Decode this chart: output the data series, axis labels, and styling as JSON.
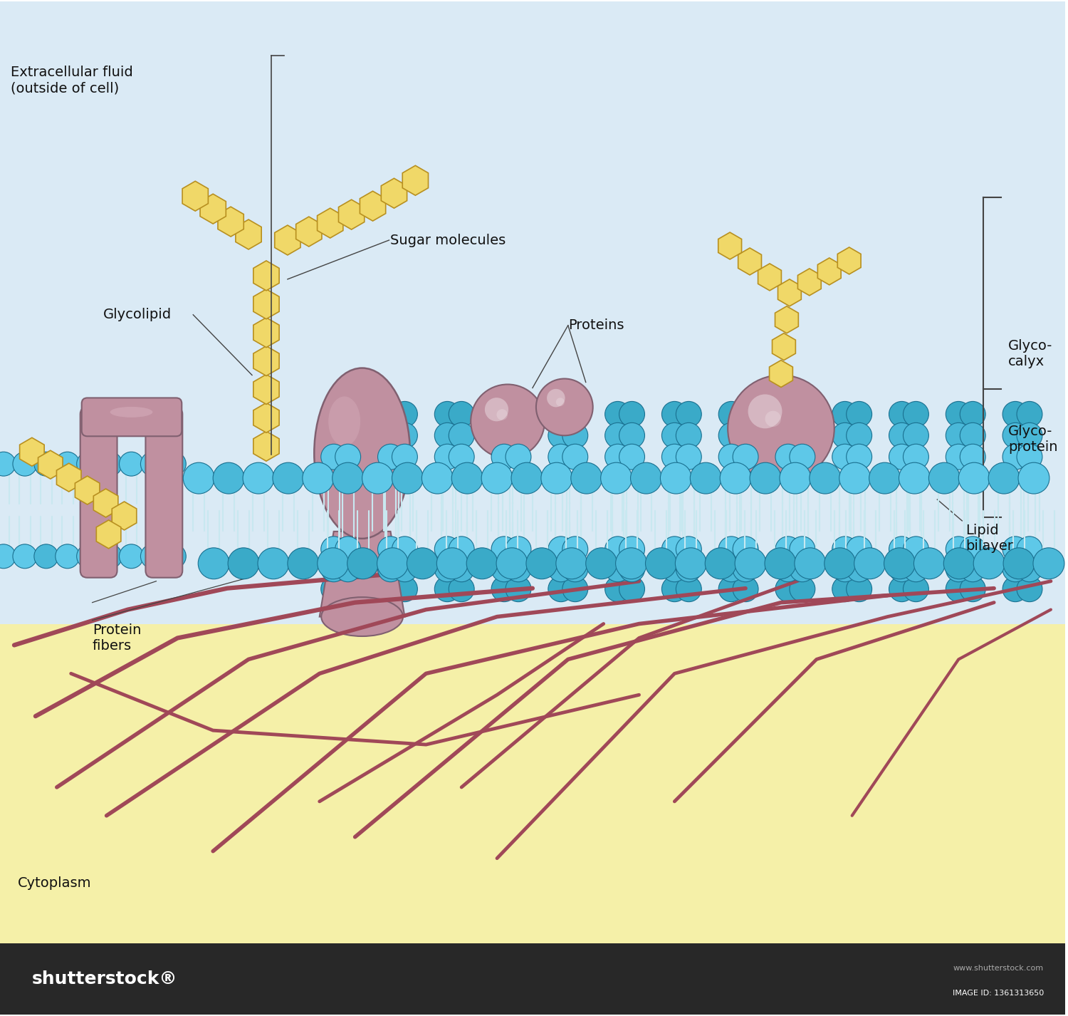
{
  "bg_extracellular": "#daeaf5",
  "bg_cytoplasm": "#f5f0a8",
  "lipid_head_fc_bright": "#5ec8e8",
  "lipid_head_fc_mid": "#4ab8d8",
  "lipid_head_fc_dark": "#3aaac8",
  "lipid_head_ec": "#1a7090",
  "lipid_tail_color": "#c8e8f0",
  "protein_fill": "#c090a0",
  "protein_edge": "#806070",
  "protein_highlight": "#d8b0be",
  "sugar_fill": "#f0d868",
  "sugar_edge": "#b89020",
  "fiber_color": "#a04858",
  "label_fontsize": 14,
  "label_color": "#111111",
  "bracket_color": "#444444",
  "line_color": "#444444",
  "ss_bar_color": "#282828",
  "figsize": [
    15.0,
    14.26
  ],
  "labels": {
    "extracellular": "Extracellular fluid\n(outside of cell)",
    "glycolipid": "Glycolipid",
    "sugar_molecules": "Sugar molecules",
    "proteins": "Proteins",
    "glycocalyx": "Glyco-\ncalyx",
    "glycoprotein": "Glyco-\nprotein",
    "protein_fibers": "Protein\nfibers",
    "lipid_bilayer": "Lipid\nbilayer",
    "cytoplasm": "Cytoplasm"
  }
}
